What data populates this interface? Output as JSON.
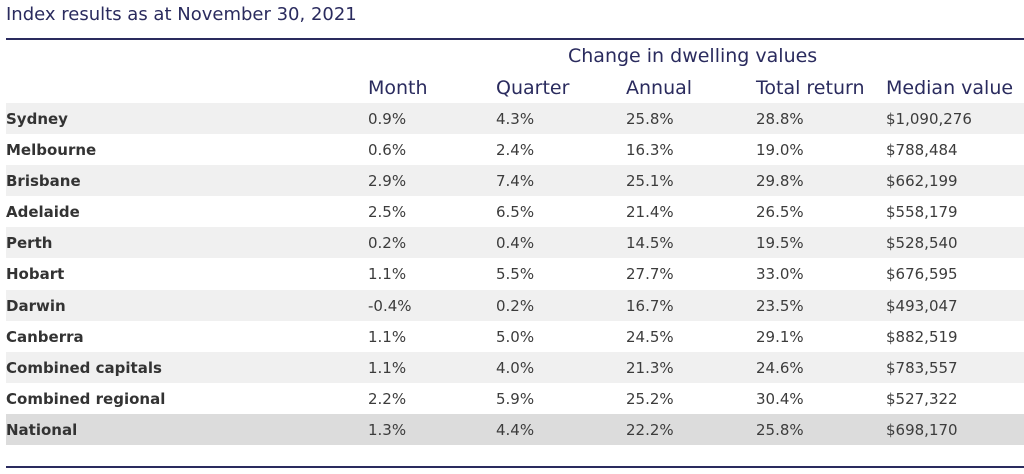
{
  "title": "Index results as at November 30, 2021",
  "group_header": "Change in dwelling values",
  "columns": {
    "month": "Month",
    "quarter": "Quarter",
    "annual": "Annual",
    "total_return": "Total return",
    "median_value": "Median value"
  },
  "rows": [
    {
      "name": "Sydney",
      "month": "0.9%",
      "quarter": "4.3%",
      "annual": "25.8%",
      "total_return": "28.8%",
      "median_value": "$1,090,276"
    },
    {
      "name": "Melbourne",
      "month": "0.6%",
      "quarter": "2.4%",
      "annual": "16.3%",
      "total_return": "19.0%",
      "median_value": "$788,484"
    },
    {
      "name": "Brisbane",
      "month": "2.9%",
      "quarter": "7.4%",
      "annual": "25.1%",
      "total_return": "29.8%",
      "median_value": "$662,199"
    },
    {
      "name": "Adelaide",
      "month": "2.5%",
      "quarter": "6.5%",
      "annual": "21.4%",
      "total_return": "26.5%",
      "median_value": "$558,179"
    },
    {
      "name": "Perth",
      "month": "0.2%",
      "quarter": "0.4%",
      "annual": "14.5%",
      "total_return": "19.5%",
      "median_value": "$528,540"
    },
    {
      "name": "Hobart",
      "month": "1.1%",
      "quarter": "5.5%",
      "annual": "27.7%",
      "total_return": "33.0%",
      "median_value": "$676,595"
    },
    {
      "name": "Darwin",
      "month": "-0.4%",
      "quarter": "0.2%",
      "annual": "16.7%",
      "total_return": "23.5%",
      "median_value": "$493,047"
    },
    {
      "name": "Canberra",
      "month": "1.1%",
      "quarter": "5.0%",
      "annual": "24.5%",
      "total_return": "29.1%",
      "median_value": "$882,519"
    },
    {
      "name": "Combined capitals",
      "month": "1.1%",
      "quarter": "4.0%",
      "annual": "21.3%",
      "total_return": "24.6%",
      "median_value": "$783,557"
    },
    {
      "name": "Combined regional",
      "month": "2.2%",
      "quarter": "5.9%",
      "annual": "25.2%",
      "total_return": "30.4%",
      "median_value": "$527,322"
    },
    {
      "name": "National",
      "month": "1.3%",
      "quarter": "4.4%",
      "annual": "22.2%",
      "total_return": "25.8%",
      "median_value": "$698,170"
    }
  ],
  "colors": {
    "heading": "#2a2b5e",
    "row_shade": "#f0f0f0",
    "national_shade": "#dcdcdc"
  }
}
